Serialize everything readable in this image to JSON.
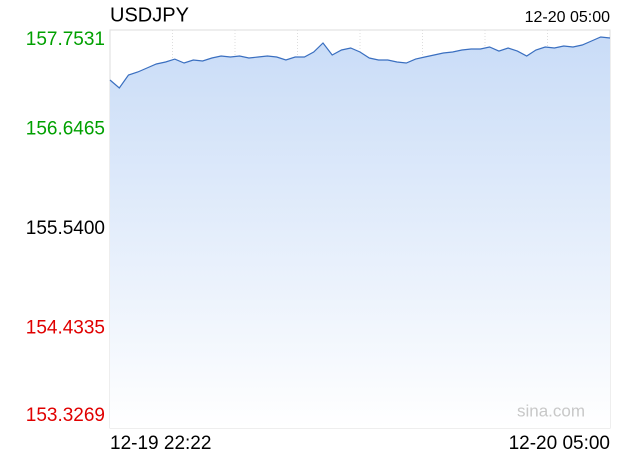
{
  "chart_data": {
    "type": "line",
    "title": "USDJPY",
    "timestamp": "12-20 05:00",
    "watermark": "sina.com",
    "categories": [
      "12-19 22:22",
      null,
      null,
      null,
      null,
      null,
      null,
      null,
      null,
      null,
      null,
      null,
      null,
      null,
      null,
      null,
      null,
      null,
      null,
      null,
      null,
      null,
      null,
      null,
      null,
      null,
      null,
      null,
      null,
      null,
      null,
      null,
      null,
      null,
      null,
      null,
      null,
      null,
      null,
      null,
      null,
      null,
      null,
      null,
      null,
      null,
      null,
      null,
      null,
      null,
      null,
      null,
      null,
      null,
      "12-20 05:00"
    ],
    "series": [
      {
        "name": "USDJPY",
        "color": "#3a6fc0",
        "values": [
          157.197,
          157.108,
          157.253,
          157.286,
          157.33,
          157.375,
          157.397,
          157.43,
          157.386,
          157.419,
          157.408,
          157.442,
          157.464,
          157.453,
          157.464,
          157.442,
          157.453,
          157.464,
          157.453,
          157.419,
          157.453,
          157.453,
          157.508,
          157.608,
          157.475,
          157.531,
          157.553,
          157.508,
          157.442,
          157.419,
          157.419,
          157.397,
          157.386,
          157.43,
          157.453,
          157.475,
          157.497,
          157.508,
          157.531,
          157.542,
          157.542,
          157.564,
          157.519,
          157.553,
          157.519,
          157.464,
          157.531,
          157.564,
          157.553,
          157.575,
          157.564,
          157.586,
          157.631,
          157.675,
          157.664
        ]
      }
    ],
    "ylim": [
      153.3269,
      157.7531
    ],
    "yticks": [
      157.7531,
      156.6465,
      {
        "value": 155.54,
        "label": "155.5400"
      },
      154.4335,
      153.3269
    ],
    "ytick_colors": [
      "#00a000",
      "#00a000",
      "#000000",
      "#e00000",
      "#e00000"
    ],
    "grid": true
  }
}
